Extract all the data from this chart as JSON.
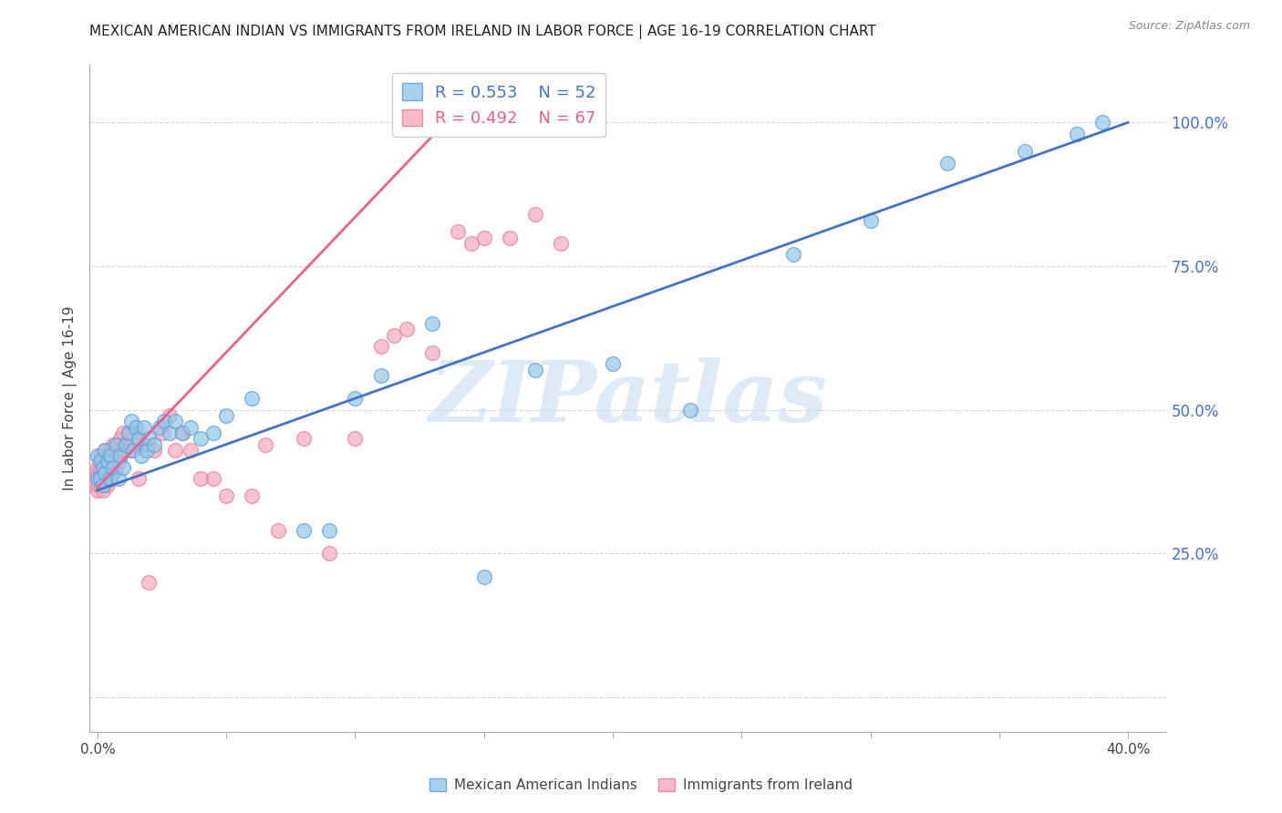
{
  "title": "MEXICAN AMERICAN INDIAN VS IMMIGRANTS FROM IRELAND IN LABOR FORCE | AGE 16-19 CORRELATION CHART",
  "source": "Source: ZipAtlas.com",
  "ylabel": "In Labor Force | Age 16-19",
  "blue_color": "#93C6E8",
  "pink_color": "#F4AABC",
  "blue_edge_color": "#5B9BD5",
  "pink_edge_color": "#E97899",
  "blue_line_color": "#4472C4",
  "pink_line_color": "#E96090",
  "right_axis_color": "#4472C4",
  "grid_color": "#CCCCCC",
  "watermark_text": "ZIPatlas",
  "watermark_color": "#C8DCF0",
  "legend_r_blue": "R = 0.553",
  "legend_n_blue": "N = 52",
  "legend_r_pink": "R = 0.492",
  "legend_n_pink": "N = 67",
  "legend_label_blue": "Mexican American Indians",
  "legend_label_pink": "Immigrants from Ireland",
  "x_lim": [
    -0.003,
    0.415
  ],
  "y_lim": [
    -0.06,
    1.1
  ],
  "x_tick_positions": [
    0.0,
    0.05,
    0.1,
    0.15,
    0.2,
    0.25,
    0.3,
    0.35,
    0.4
  ],
  "x_tick_labels": [
    "0.0%",
    "",
    "",
    "",
    "",
    "",
    "",
    "",
    "40.0%"
  ],
  "y_tick_positions": [
    0.0,
    0.25,
    0.5,
    0.75,
    1.0
  ],
  "y_tick_labels_right": [
    "",
    "25.0%",
    "50.0%",
    "75.0%",
    "100.0%"
  ],
  "blue_line_x": [
    0.0,
    0.4
  ],
  "blue_line_y": [
    0.36,
    1.0
  ],
  "pink_line_x": [
    0.0,
    0.135
  ],
  "pink_line_y": [
    0.365,
    1.0
  ],
  "blue_pts_x": [
    0.0,
    0.0,
    0.001,
    0.001,
    0.002,
    0.002,
    0.003,
    0.003,
    0.004,
    0.005,
    0.005,
    0.006,
    0.007,
    0.008,
    0.009,
    0.01,
    0.011,
    0.012,
    0.013,
    0.014,
    0.015,
    0.016,
    0.017,
    0.018,
    0.019,
    0.02,
    0.022,
    0.024,
    0.026,
    0.028,
    0.03,
    0.033,
    0.036,
    0.04,
    0.045,
    0.05,
    0.06,
    0.08,
    0.09,
    0.1,
    0.11,
    0.13,
    0.15,
    0.17,
    0.2,
    0.23,
    0.27,
    0.3,
    0.33,
    0.36,
    0.38,
    0.39
  ],
  "blue_pts_y": [
    0.38,
    0.42,
    0.38,
    0.41,
    0.37,
    0.4,
    0.39,
    0.43,
    0.41,
    0.38,
    0.42,
    0.4,
    0.44,
    0.38,
    0.42,
    0.4,
    0.44,
    0.46,
    0.48,
    0.43,
    0.47,
    0.45,
    0.42,
    0.47,
    0.43,
    0.45,
    0.44,
    0.47,
    0.48,
    0.46,
    0.48,
    0.46,
    0.47,
    0.45,
    0.46,
    0.49,
    0.52,
    0.29,
    0.29,
    0.52,
    0.56,
    0.65,
    0.21,
    0.57,
    0.58,
    0.5,
    0.77,
    0.83,
    0.93,
    0.95,
    0.98,
    1.0
  ],
  "pink_pts_x": [
    0.0,
    0.0,
    0.0,
    0.0,
    0.0,
    0.001,
    0.001,
    0.001,
    0.001,
    0.002,
    0.002,
    0.002,
    0.002,
    0.003,
    0.003,
    0.003,
    0.003,
    0.004,
    0.004,
    0.004,
    0.005,
    0.005,
    0.005,
    0.006,
    0.006,
    0.006,
    0.007,
    0.007,
    0.008,
    0.008,
    0.009,
    0.009,
    0.01,
    0.01,
    0.011,
    0.012,
    0.013,
    0.014,
    0.015,
    0.016,
    0.018,
    0.02,
    0.022,
    0.025,
    0.028,
    0.03,
    0.033,
    0.036,
    0.04,
    0.045,
    0.05,
    0.06,
    0.065,
    0.07,
    0.08,
    0.09,
    0.1,
    0.11,
    0.115,
    0.12,
    0.13,
    0.14,
    0.145,
    0.15,
    0.16,
    0.17,
    0.18
  ],
  "pink_pts_y": [
    0.36,
    0.37,
    0.38,
    0.39,
    0.4,
    0.37,
    0.38,
    0.4,
    0.42,
    0.36,
    0.38,
    0.4,
    0.42,
    0.37,
    0.39,
    0.41,
    0.43,
    0.37,
    0.39,
    0.42,
    0.38,
    0.41,
    0.43,
    0.39,
    0.41,
    0.44,
    0.4,
    0.43,
    0.41,
    0.44,
    0.42,
    0.45,
    0.43,
    0.46,
    0.44,
    0.46,
    0.43,
    0.46,
    0.44,
    0.38,
    0.44,
    0.2,
    0.43,
    0.46,
    0.49,
    0.43,
    0.46,
    0.43,
    0.38,
    0.38,
    0.35,
    0.35,
    0.44,
    0.29,
    0.45,
    0.25,
    0.45,
    0.61,
    0.63,
    0.64,
    0.6,
    0.81,
    0.79,
    0.8,
    0.8,
    0.84,
    0.79
  ]
}
